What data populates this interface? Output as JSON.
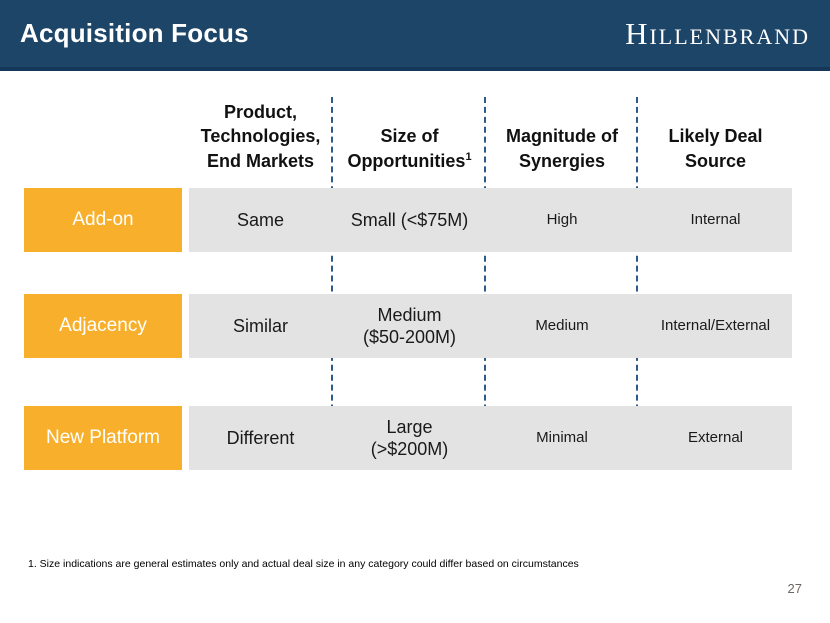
{
  "header": {
    "title": "Acquisition Focus",
    "logo": "Hillenbrand"
  },
  "table": {
    "columns": [
      {
        "label": "Product,\nTechnologies,\nEnd Markets"
      },
      {
        "label": "Size of\nOpportunities",
        "footnote_marker": "1"
      },
      {
        "label": "Magnitude of\nSynergies"
      },
      {
        "label": "Likely Deal\nSource"
      }
    ],
    "rows": [
      {
        "label": "Add-on",
        "cells": [
          "Same",
          "Small (<$75M)",
          "High",
          "Internal"
        ]
      },
      {
        "label": "Adjacency",
        "cells": [
          "Similar",
          "Medium\n($50-200M)",
          "Medium",
          "Internal/External"
        ]
      },
      {
        "label": "New Platform",
        "cells": [
          "Different",
          "Large\n(>$200M)",
          "Minimal",
          "External"
        ]
      }
    ]
  },
  "footnote": "1. Size indications are general estimates only and actual deal size in any category could differ based on circumstances",
  "page_number": "27",
  "colors": {
    "header_navy": "#1D4568",
    "header_border": "#15385A",
    "accent_orange": "#F8B02C",
    "row_gray": "#E3E3E3",
    "divider_blue": "#2D5A8C"
  }
}
